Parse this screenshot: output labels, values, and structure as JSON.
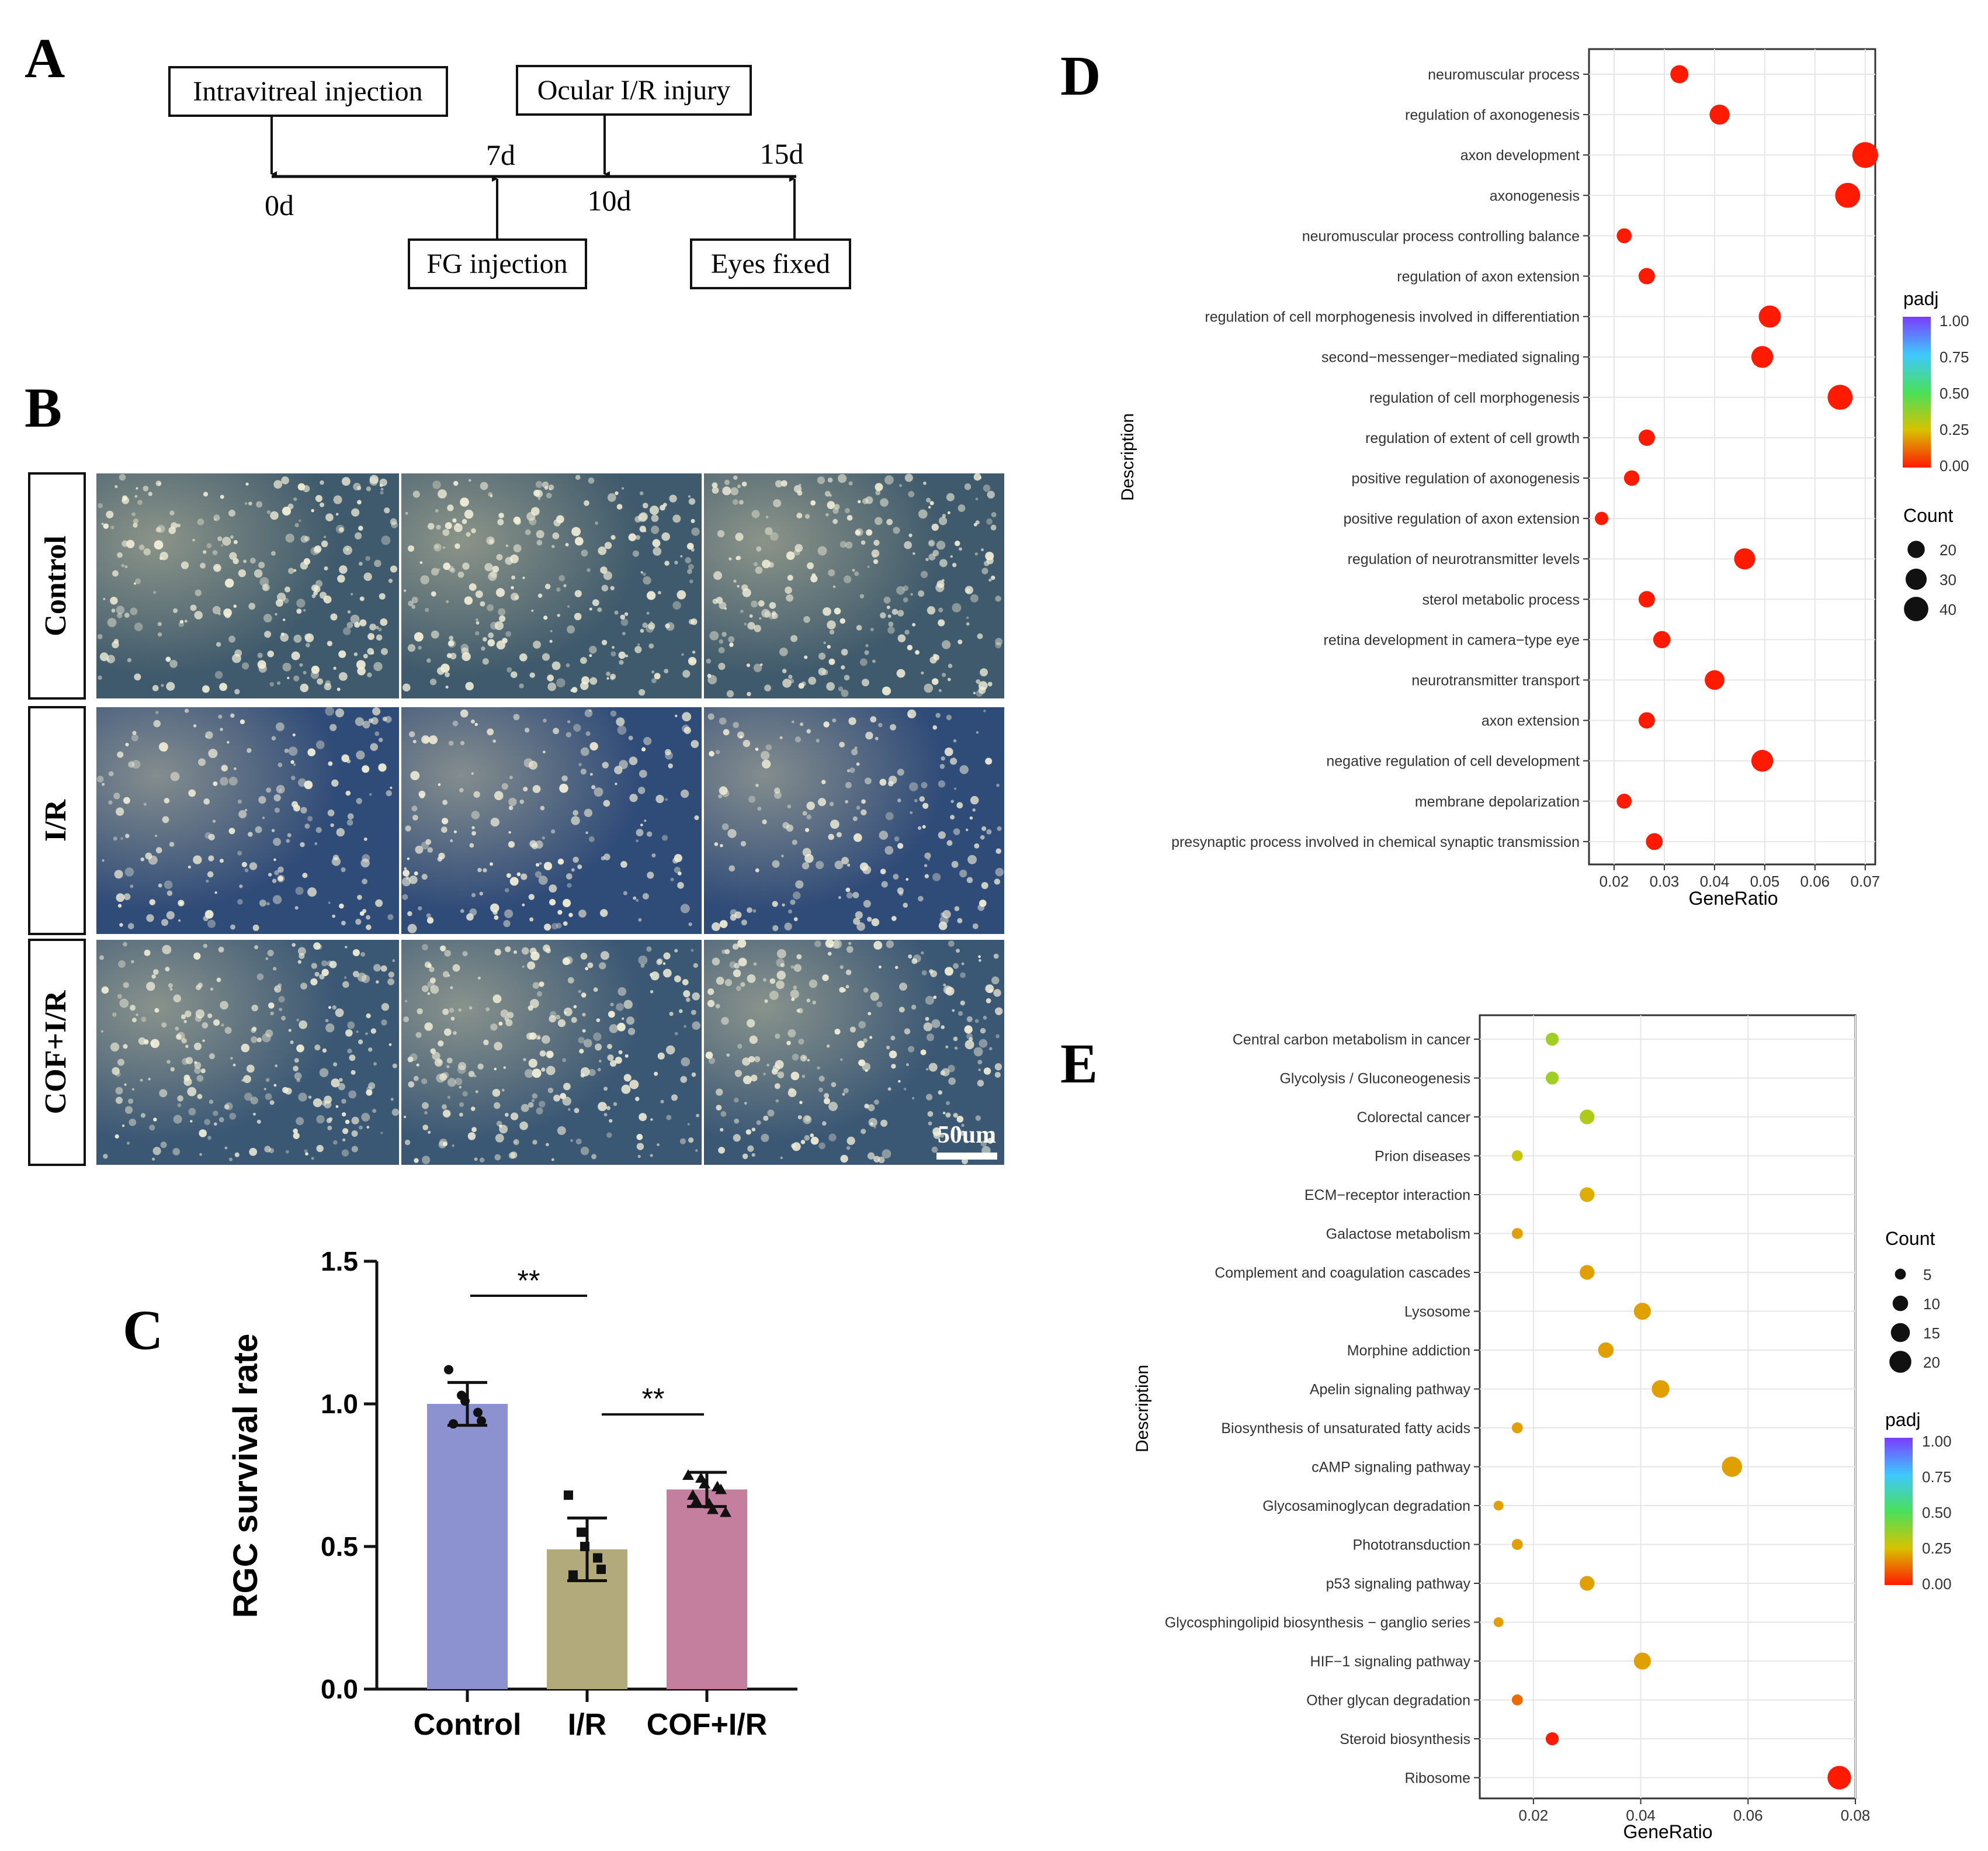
{
  "panel_a": {
    "letter": "A",
    "box_injection": "Intravitreal  injection",
    "box_ir": "Ocular I/R injury",
    "box_fg": "FG injection",
    "box_fixed": "Eyes fixed",
    "t0": "0d",
    "t7": "7d",
    "t10": "10d",
    "t15": "15d"
  },
  "panel_b": {
    "letter": "B",
    "rows": [
      "Control",
      "I/R",
      "COF+I/R"
    ],
    "scale_bar": "50um",
    "colors": {
      "control_background": "#3f5a6c",
      "ir_background": "#2f4b78",
      "cof_background": "#3a5774",
      "cell": "#f2efd8"
    }
  },
  "panel_c": {
    "letter": "C",
    "sig1": "**",
    "sig2": "**",
    "chart_data": {
      "type": "bar",
      "categories": [
        "Control",
        "I/R",
        "COF+I/R"
      ],
      "values": [
        1.0,
        0.49,
        0.7
      ],
      "errors": [
        0.075,
        0.11,
        0.06
      ],
      "ylabel": "RGC  survival rate",
      "ylim": [
        0,
        1.5
      ],
      "yticks": [
        "0.0",
        "0.5",
        "1.0",
        "1.5"
      ],
      "bar_colors": [
        "#8c92cf",
        "#b3aa7c",
        "#c47e9e"
      ],
      "points": [
        [
          1.12,
          1.03,
          1.01,
          0.97,
          0.94,
          0.93
        ],
        [
          0.68,
          0.55,
          0.5,
          0.46,
          0.42,
          0.4
        ],
        [
          0.75,
          0.74,
          0.72,
          0.71,
          0.7,
          0.68,
          0.66,
          0.65,
          0.63,
          0.62
        ]
      ],
      "markers": [
        "circle",
        "square",
        "triangle"
      ]
    }
  },
  "panel_d": {
    "letter": "D",
    "chart_data": {
      "type": "scatter",
      "xlabel": "GeneRatio",
      "ylabel": "Description",
      "xlim": [
        0.015,
        0.072
      ],
      "xticks": [
        "0.02",
        "0.03",
        "0.04",
        "0.05",
        "0.06",
        "0.07"
      ],
      "categories": [
        "neuromuscular process",
        "regulation of axonogenesis",
        "axon development",
        "axonogenesis",
        "neuromuscular process controlling balance",
        "regulation of axon extension",
        "regulation of cell morphogenesis involved in differentiation",
        "second−messenger−mediated signaling",
        "regulation of cell morphogenesis",
        "regulation of extent of cell growth",
        "positive regulation of axonogenesis",
        "positive regulation of axon extension",
        "regulation of neurotransmitter levels",
        "sterol metabolic process",
        "retina development in camera−type eye",
        "neurotransmitter transport",
        "axon extension",
        "negative regulation of cell development",
        "membrane depolarization",
        "presynaptic process involved in chemical synaptic transmission"
      ],
      "gene_ratio": [
        0.033,
        0.041,
        0.07,
        0.0665,
        0.022,
        0.0265,
        0.051,
        0.0495,
        0.065,
        0.0265,
        0.0235,
        0.0175,
        0.046,
        0.0265,
        0.0295,
        0.04,
        0.0265,
        0.0495,
        0.022,
        0.028
      ],
      "count": [
        22,
        27,
        45,
        42,
        15,
        18,
        33,
        32,
        42,
        18,
        16,
        12,
        30,
        18,
        20,
        26,
        18,
        32,
        15,
        19
      ],
      "padj": [
        0.0,
        0.0,
        0.0,
        0.0,
        0.0,
        0.0,
        0.0,
        0.0,
        0.0,
        0.0,
        0.0,
        0.0,
        0.0,
        0.0,
        0.0,
        0.0,
        0.0,
        0.0,
        0.0,
        0.0
      ],
      "legend_padj_title": "padj",
      "legend_padj_ticks": [
        "1.00",
        "0.75",
        "0.50",
        "0.25",
        "0.00"
      ],
      "legend_count_title": "Count",
      "legend_count_ticks": [
        20,
        30,
        40
      ]
    }
  },
  "panel_e": {
    "letter": "E",
    "chart_data": {
      "type": "scatter",
      "xlabel": "GeneRatio",
      "ylabel": "Description",
      "xlim": [
        0.01,
        0.08
      ],
      "xticks": [
        "0.02",
        "0.04",
        "0.06",
        "0.08"
      ],
      "categories": [
        "Central carbon metabolism in cancer",
        "Glycolysis / Gluconeogenesis",
        "Colorectal cancer",
        "Prion diseases",
        "ECM−receptor interaction",
        "Galactose metabolism",
        "Complement and coagulation cascades",
        "Lysosome",
        "Morphine addiction",
        "Apelin signaling pathway",
        "Biosynthesis of unsaturated fatty acids",
        "cAMP signaling pathway",
        "Glycosaminoglycan degradation",
        "Phototransduction",
        "p53 signaling pathway",
        "Glycosphingolipid biosynthesis − ganglio series",
        "HIF−1 signaling pathway",
        "Other glycan degradation",
        "Steroid biosynthesis",
        "Ribosome"
      ],
      "gene_ratio": [
        0.0235,
        0.0235,
        0.03,
        0.017,
        0.03,
        0.017,
        0.03,
        0.0403,
        0.0335,
        0.0437,
        0.017,
        0.057,
        0.0135,
        0.017,
        0.03,
        0.0135,
        0.0403,
        0.017,
        0.0235,
        0.077
      ],
      "count": [
        7,
        7,
        9,
        5,
        9,
        5,
        9,
        12,
        10,
        13,
        5,
        17,
        4,
        5,
        9,
        4,
        12,
        5,
        7,
        23
      ],
      "padj": [
        0.35,
        0.35,
        0.32,
        0.28,
        0.22,
        0.2,
        0.2,
        0.2,
        0.2,
        0.2,
        0.2,
        0.2,
        0.2,
        0.2,
        0.2,
        0.2,
        0.2,
        0.12,
        0.0,
        0.0
      ],
      "legend_count_title": "Count",
      "legend_count_ticks": [
        5,
        10,
        15,
        20
      ],
      "legend_padj_title": "padj",
      "legend_padj_ticks": [
        "1.00",
        "0.75",
        "0.50",
        "0.25",
        "0.00"
      ]
    }
  }
}
